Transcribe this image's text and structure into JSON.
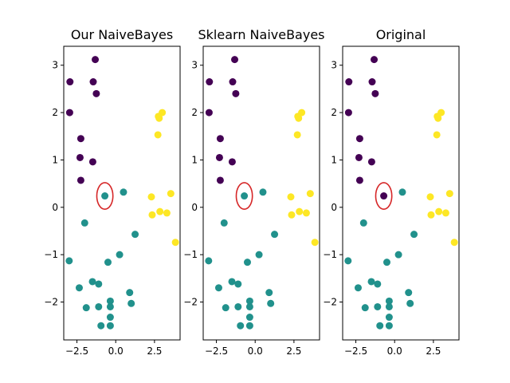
{
  "colors": {
    "class0": "#440154",
    "class1": "#21918c",
    "class2": "#fde725",
    "highlight": "#d62728"
  },
  "chart_data": [
    {
      "type": "scatter",
      "title": "Our NaiveBayes",
      "xlabel": "",
      "ylabel": "",
      "xlim": [
        -3.35,
        4.15
      ],
      "ylim": [
        -2.8,
        3.4
      ],
      "xticks": [
        -2.5,
        0.0,
        2.5
      ],
      "xtick_labels": [
        "−2.5",
        "0.0",
        "2.5"
      ],
      "yticks": [
        -2,
        -1,
        0,
        1,
        2,
        3
      ],
      "ytick_labels": [
        "−2",
        "−1",
        "0",
        "1",
        "2",
        "3"
      ],
      "grid": false,
      "x": [
        -1.32,
        -2.95,
        -1.45,
        -1.25,
        -2.97,
        -2.25,
        -1.48,
        -2.3,
        -2.25,
        -0.7,
        0.5,
        1.25,
        -2.0,
        -3.0,
        0.25,
        -0.5,
        -1.5,
        -1.1,
        -2.35,
        -1.1,
        -1.9,
        -0.35,
        -0.35,
        -0.95,
        0.9,
        1.0,
        -0.35,
        -0.35,
        3.0,
        2.75,
        2.8,
        2.72,
        2.3,
        3.55,
        2.35,
        2.85,
        3.3,
        3.85
      ],
      "y": [
        3.12,
        2.65,
        2.65,
        2.4,
        2.0,
        1.45,
        0.96,
        1.05,
        0.57,
        0.24,
        0.32,
        -0.57,
        -0.33,
        -1.13,
        -1.0,
        -1.16,
        -1.57,
        -1.62,
        -1.7,
        -2.1,
        -2.12,
        -1.98,
        -2.32,
        -2.5,
        -1.8,
        -2.03,
        -2.1,
        -2.5,
        2.0,
        1.92,
        1.88,
        1.53,
        0.22,
        0.29,
        -0.16,
        -0.09,
        -0.12,
        -0.74
      ],
      "labels": [
        0,
        0,
        0,
        0,
        0,
        0,
        0,
        0,
        0,
        1,
        1,
        1,
        1,
        1,
        1,
        1,
        1,
        1,
        1,
        1,
        1,
        1,
        1,
        1,
        1,
        1,
        1,
        1,
        2,
        2,
        2,
        2,
        2,
        2,
        2,
        2,
        2,
        2
      ],
      "highlight": {
        "x": -0.7,
        "y": 0.24,
        "rx": 0.52,
        "ry": 0.28
      }
    },
    {
      "type": "scatter",
      "title": "Sklearn NaiveBayes",
      "xlabel": "",
      "ylabel": "",
      "xlim": [
        -3.35,
        4.15
      ],
      "ylim": [
        -2.8,
        3.4
      ],
      "xticks": [
        -2.5,
        0.0,
        2.5
      ],
      "xtick_labels": [
        "−2.5",
        "0.0",
        "2.5"
      ],
      "yticks": [
        -2,
        -1,
        0,
        1,
        2,
        3
      ],
      "ytick_labels": [
        "−2",
        "−1",
        "0",
        "1",
        "2",
        "3"
      ],
      "grid": false,
      "x": [
        -1.32,
        -2.95,
        -1.45,
        -1.25,
        -2.97,
        -2.25,
        -1.48,
        -2.3,
        -2.25,
        -0.7,
        0.5,
        1.25,
        -2.0,
        -3.0,
        0.25,
        -0.5,
        -1.5,
        -1.1,
        -2.35,
        -1.1,
        -1.9,
        -0.35,
        -0.35,
        -0.95,
        0.9,
        1.0,
        -0.35,
        -0.35,
        3.0,
        2.75,
        2.8,
        2.72,
        2.3,
        3.55,
        2.35,
        2.85,
        3.3,
        3.85
      ],
      "y": [
        3.12,
        2.65,
        2.65,
        2.4,
        2.0,
        1.45,
        0.96,
        1.05,
        0.57,
        0.24,
        0.32,
        -0.57,
        -0.33,
        -1.13,
        -1.0,
        -1.16,
        -1.57,
        -1.62,
        -1.7,
        -2.1,
        -2.12,
        -1.98,
        -2.32,
        -2.5,
        -1.8,
        -2.03,
        -2.1,
        -2.5,
        2.0,
        1.92,
        1.88,
        1.53,
        0.22,
        0.29,
        -0.16,
        -0.09,
        -0.12,
        -0.74
      ],
      "labels": [
        0,
        0,
        0,
        0,
        0,
        0,
        0,
        0,
        0,
        1,
        1,
        1,
        1,
        1,
        1,
        1,
        1,
        1,
        1,
        1,
        1,
        1,
        1,
        1,
        1,
        1,
        1,
        1,
        2,
        2,
        2,
        2,
        2,
        2,
        2,
        2,
        2,
        2
      ],
      "highlight": {
        "x": -0.7,
        "y": 0.24,
        "rx": 0.52,
        "ry": 0.28
      }
    },
    {
      "type": "scatter",
      "title": "Original",
      "xlabel": "",
      "ylabel": "",
      "xlim": [
        -3.35,
        4.15
      ],
      "ylim": [
        -2.8,
        3.4
      ],
      "xticks": [
        -2.5,
        0.0,
        2.5
      ],
      "xtick_labels": [
        "−2.5",
        "0.0",
        "2.5"
      ],
      "yticks": [
        -2,
        -1,
        0,
        1,
        2,
        3
      ],
      "ytick_labels": [
        "−2",
        "−1",
        "0",
        "1",
        "2",
        "3"
      ],
      "grid": false,
      "x": [
        -1.32,
        -2.95,
        -1.45,
        -1.25,
        -2.97,
        -2.25,
        -1.48,
        -2.3,
        -2.25,
        -0.7,
        0.5,
        1.25,
        -2.0,
        -3.0,
        0.25,
        -0.5,
        -1.5,
        -1.1,
        -2.35,
        -1.1,
        -1.9,
        -0.35,
        -0.35,
        -0.95,
        0.9,
        1.0,
        -0.35,
        -0.35,
        3.0,
        2.75,
        2.8,
        2.72,
        2.3,
        3.55,
        2.35,
        2.85,
        3.3,
        3.85
      ],
      "y": [
        3.12,
        2.65,
        2.65,
        2.4,
        2.0,
        1.45,
        0.96,
        1.05,
        0.57,
        0.24,
        0.32,
        -0.57,
        -0.33,
        -1.13,
        -1.0,
        -1.16,
        -1.57,
        -1.62,
        -1.7,
        -2.1,
        -2.12,
        -1.98,
        -2.32,
        -2.5,
        -1.8,
        -2.03,
        -2.1,
        -2.5,
        2.0,
        1.92,
        1.88,
        1.53,
        0.22,
        0.29,
        -0.16,
        -0.09,
        -0.12,
        -0.74
      ],
      "labels": [
        0,
        0,
        0,
        0,
        0,
        0,
        0,
        0,
        0,
        0,
        1,
        1,
        1,
        1,
        1,
        1,
        1,
        1,
        1,
        1,
        1,
        1,
        1,
        1,
        1,
        1,
        1,
        1,
        2,
        2,
        2,
        2,
        2,
        2,
        2,
        2,
        2,
        2
      ],
      "highlight": {
        "x": -0.7,
        "y": 0.24,
        "rx": 0.52,
        "ry": 0.28
      }
    }
  ]
}
